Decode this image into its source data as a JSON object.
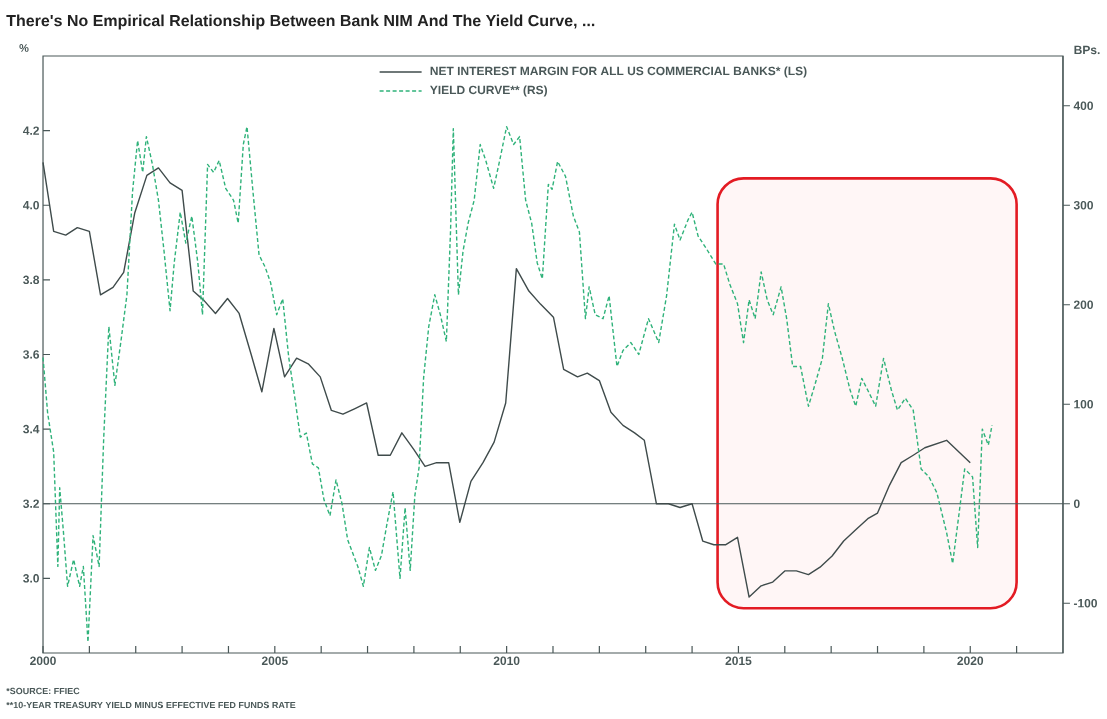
{
  "chart_data": {
    "type": "line",
    "title": "There's No Empirical Relationship Between Bank NIM And The Yield Curve, ...",
    "ylabel": "%",
    "y2label": "BPs.",
    "annotations": [
      "*SOURCE: FFIEC",
      "**10-YEAR TREASURY YIELD MINUS EFFECTIVE FED FUNDS RATE"
    ],
    "legend": "top",
    "xlim": [
      2000,
      2022
    ],
    "xticks": [
      {
        "value": 2000,
        "label": "2000"
      },
      {
        "value": 2001,
        "label": null
      },
      {
        "value": 2002,
        "label": null
      },
      {
        "value": 2003,
        "label": null
      },
      {
        "value": 2004,
        "label": null
      },
      {
        "value": 2005,
        "label": "2005"
      },
      {
        "value": 2006,
        "label": null
      },
      {
        "value": 2007,
        "label": null
      },
      {
        "value": 2008,
        "label": null
      },
      {
        "value": 2009,
        "label": null
      },
      {
        "value": 2010,
        "label": "2010"
      },
      {
        "value": 2011,
        "label": null
      },
      {
        "value": 2012,
        "label": null
      },
      {
        "value": 2013,
        "label": null
      },
      {
        "value": 2014,
        "label": null
      },
      {
        "value": 2015,
        "label": "2015"
      },
      {
        "value": 2016,
        "label": null
      },
      {
        "value": 2017,
        "label": null
      },
      {
        "value": 2018,
        "label": null
      },
      {
        "value": 2019,
        "label": null
      },
      {
        "value": 2020,
        "label": "2020"
      },
      {
        "value": 2021,
        "label": null
      }
    ],
    "ylim": [
      2.8,
      4.4
    ],
    "yticks": [
      {
        "value": 3.0,
        "label": "3.0"
      },
      3.2,
      3.4,
      3.6,
      3.8,
      {
        "value": 4.0,
        "label": "4.0"
      },
      4.2
    ],
    "y2lim": [
      -150,
      450
    ],
    "y2ticks": [
      -100,
      0,
      100,
      200,
      300,
      400
    ],
    "ref_lines": [
      {
        "axis": "y",
        "value": 3.2,
        "color": "#4a5858"
      }
    ],
    "bands": [
      {
        "axis": "x",
        "from": 2014.55,
        "to": 2021.0,
        "color": "#e31b23"
      }
    ],
    "series": [
      {
        "name": "NET INTEREST MARGIN FOR ALL US COMMERCIAL BANKS* (LS)",
        "color": "#3f4b4b",
        "line_style": "solid",
        "x": [
          2000.0,
          2000.23,
          2000.49,
          2000.74,
          2001.0,
          2001.24,
          2001.51,
          2001.74,
          2001.98,
          2002.24,
          2002.49,
          2002.74,
          2003.0,
          2003.24,
          2003.47,
          2003.72,
          2003.98,
          2004.23,
          2004.49,
          2004.72,
          2004.98,
          2005.21,
          2005.47,
          2005.72,
          2005.98,
          2006.22,
          2006.47,
          2006.73,
          2006.98,
          2007.23,
          2007.49,
          2007.74,
          2008.0,
          2008.24,
          2008.49,
          2008.75,
          2008.99,
          2009.23,
          2009.49,
          2009.73,
          2009.98,
          2010.21,
          2010.48,
          2010.73,
          2011.01,
          2011.23,
          2011.53,
          2011.74,
          2012.0,
          2012.25,
          2012.51,
          2012.76,
          2012.97,
          2013.23,
          2013.49,
          2013.74,
          2014.0,
          2014.23,
          2014.47,
          2014.72,
          2014.98,
          2015.23,
          2015.49,
          2015.74,
          2016.0,
          2016.25,
          2016.51,
          2016.76,
          2017.02,
          2017.27,
          2017.53,
          2017.79,
          2018.0,
          2018.26,
          2018.51,
          2018.77,
          2019.02,
          2019.49,
          2020.0
        ],
        "values": [
          4.115,
          3.93,
          3.92,
          3.94,
          3.93,
          3.76,
          3.78,
          3.82,
          3.98,
          4.08,
          4.1,
          4.06,
          4.04,
          3.77,
          3.745,
          3.71,
          3.75,
          3.71,
          3.6,
          3.5,
          3.67,
          3.54,
          3.59,
          3.575,
          3.54,
          3.45,
          3.44,
          3.455,
          3.47,
          3.33,
          3.33,
          3.39,
          3.345,
          3.3,
          3.31,
          3.31,
          3.15,
          3.26,
          3.31,
          3.365,
          3.47,
          3.83,
          3.77,
          3.735,
          3.7,
          3.56,
          3.54,
          3.55,
          3.53,
          3.445,
          3.41,
          3.39,
          3.37,
          3.2,
          3.2,
          3.19,
          3.2,
          3.1,
          3.09,
          3.09,
          3.11,
          2.95,
          2.98,
          2.99,
          3.02,
          3.02,
          3.01,
          3.03,
          3.06,
          3.1,
          3.13,
          3.16,
          3.175,
          3.25,
          3.31,
          3.33,
          3.35,
          3.37,
          3.31
        ]
      },
      {
        "name": "YIELD CURVE** (RS)",
        "color": "#2fb27a",
        "line_style": "dashed",
        "axis": "y2",
        "x": [
          2000.0,
          2000.1,
          2000.23,
          2000.32,
          2000.36,
          2000.44,
          2000.53,
          2000.66,
          2000.79,
          2000.87,
          2000.97,
          2001.08,
          2001.21,
          2001.31,
          2001.42,
          2001.55,
          2001.68,
          2001.81,
          2001.93,
          2002.04,
          2002.15,
          2002.23,
          2002.36,
          2002.49,
          2002.61,
          2002.74,
          2002.83,
          2002.96,
          2003.08,
          2003.21,
          2003.34,
          2003.44,
          2003.55,
          2003.68,
          2003.8,
          2003.94,
          2004.11,
          2004.21,
          2004.32,
          2004.4,
          2004.53,
          2004.66,
          2004.79,
          2004.91,
          2005.04,
          2005.17,
          2005.3,
          2005.43,
          2005.55,
          2005.68,
          2005.81,
          2005.94,
          2006.06,
          2006.19,
          2006.32,
          2006.45,
          2006.57,
          2006.7,
          2006.79,
          2006.91,
          2007.04,
          2007.17,
          2007.3,
          2007.42,
          2007.55,
          2007.7,
          2007.81,
          2007.92,
          2008.02,
          2008.11,
          2008.21,
          2008.32,
          2008.45,
          2008.57,
          2008.7,
          2008.79,
          2008.85,
          2008.96,
          2009.06,
          2009.17,
          2009.3,
          2009.43,
          2009.55,
          2009.72,
          2009.85,
          2010.0,
          2010.15,
          2010.28,
          2010.41,
          2010.54,
          2010.66,
          2010.77,
          2010.9,
          2010.98,
          2011.1,
          2011.27,
          2011.44,
          2011.57,
          2011.7,
          2011.78,
          2011.91,
          2012.08,
          2012.21,
          2012.38,
          2012.51,
          2012.68,
          2012.85,
          2013.06,
          2013.28,
          2013.45,
          2013.62,
          2013.74,
          2013.91,
          2014.0,
          2014.13,
          2014.3,
          2014.51,
          2014.68,
          2014.81,
          2014.98,
          2015.11,
          2015.23,
          2015.36,
          2015.49,
          2015.62,
          2015.75,
          2015.92,
          2016.04,
          2016.17,
          2016.34,
          2016.51,
          2016.64,
          2016.81,
          2016.94,
          2017.07,
          2017.24,
          2017.41,
          2017.53,
          2017.66,
          2017.79,
          2017.96,
          2018.13,
          2018.3,
          2018.43,
          2018.6,
          2018.77,
          2018.94,
          2019.11,
          2019.28,
          2019.49,
          2019.62,
          2019.75,
          2019.88,
          2020.05,
          2020.16,
          2020.26,
          2020.39,
          2020.47
        ],
        "values": [
          147,
          91,
          52,
          -63,
          16,
          -28,
          -83,
          -56,
          -83,
          -63,
          -139,
          -32,
          -63,
          67,
          178,
          119,
          163,
          210,
          313,
          365,
          333,
          369,
          341,
          305,
          254,
          194,
          242,
          293,
          262,
          289,
          242,
          190,
          341,
          333,
          345,
          317,
          305,
          282,
          361,
          379,
          313,
          250,
          238,
          222,
          190,
          206,
          147,
          107,
          67,
          71,
          40,
          36,
          4,
          -12,
          24,
          0,
          -36,
          -52,
          -63,
          -83,
          -44,
          -67,
          -52,
          -20,
          12,
          -75,
          -4,
          -67,
          8,
          36,
          127,
          178,
          210,
          190,
          163,
          274,
          377,
          210,
          254,
          282,
          305,
          361,
          345,
          317,
          345,
          379,
          361,
          369,
          305,
          282,
          242,
          226,
          321,
          316,
          344,
          329,
          289,
          273,
          186,
          218,
          190,
          186,
          209,
          138,
          154,
          162,
          150,
          186,
          162,
          209,
          281,
          265,
          285,
          293,
          269,
          257,
          241,
          241,
          221,
          201,
          162,
          205,
          186,
          233,
          205,
          190,
          218,
          186,
          138,
          138,
          98,
          118,
          146,
          201,
          174,
          146,
          114,
          98,
          126,
          114,
          98,
          146,
          114,
          94,
          106,
          94,
          35,
          27,
          11,
          -29,
          -60,
          -13,
          35,
          27,
          -44,
          75,
          59,
          79
        ]
      }
    ]
  }
}
